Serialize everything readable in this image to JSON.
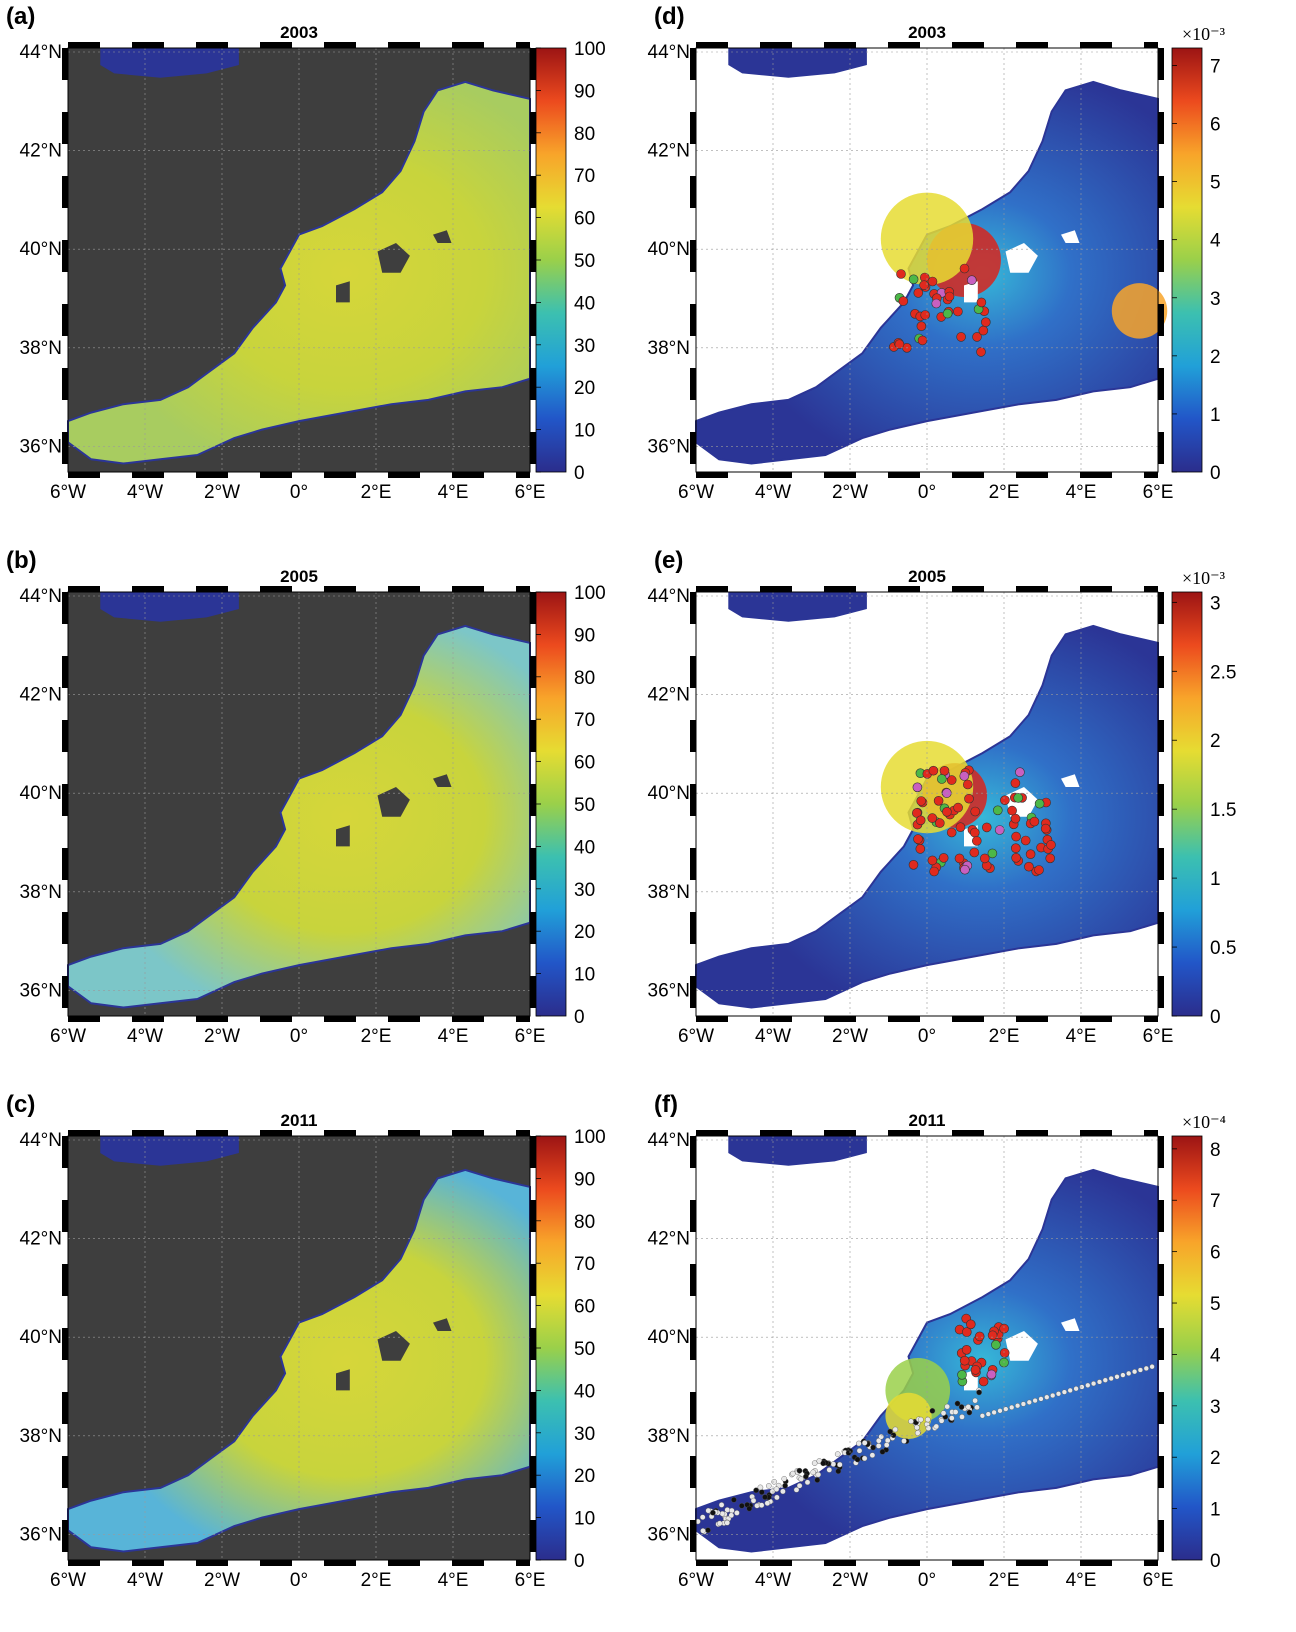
{
  "figure": {
    "panels": [
      {
        "label": "(a)",
        "year": "2003",
        "kind": "percent",
        "colorbar_ticks": [
          "100",
          "90",
          "80",
          "70",
          "60",
          "50",
          "40",
          "30",
          "20",
          "10",
          "0"
        ],
        "colorbar_exponent": ""
      },
      {
        "label": "(b)",
        "year": "2005",
        "kind": "percent",
        "colorbar_ticks": [
          "100",
          "90",
          "80",
          "70",
          "60",
          "50",
          "40",
          "30",
          "20",
          "10",
          "0"
        ],
        "colorbar_exponent": ""
      },
      {
        "label": "(c)",
        "year": "2011",
        "kind": "percent",
        "colorbar_ticks": [
          "100",
          "90",
          "80",
          "70",
          "60",
          "50",
          "40",
          "30",
          "20",
          "10",
          "0"
        ],
        "colorbar_exponent": ""
      },
      {
        "label": "(d)",
        "year": "2003",
        "kind": "density",
        "colorbar_ticks": [
          "7",
          "6",
          "5",
          "4",
          "3",
          "2",
          "1",
          "0"
        ],
        "colorbar_exponent": "×10⁻³"
      },
      {
        "label": "(e)",
        "year": "2005",
        "kind": "density",
        "colorbar_ticks": [
          "3",
          "2.5",
          "2",
          "1.5",
          "1",
          "0.5",
          "0"
        ],
        "colorbar_exponent": "×10⁻³"
      },
      {
        "label": "(f)",
        "year": "2011",
        "kind": "density",
        "colorbar_ticks": [
          "8",
          "7",
          "6",
          "5",
          "4",
          "3",
          "2",
          "1",
          "0"
        ],
        "colorbar_exponent": "×10⁻⁴"
      }
    ],
    "lat_labels": [
      "44°N",
      "42°N",
      "40°N",
      "38°N",
      "36°N"
    ],
    "lon_labels": [
      "6°W",
      "4°W",
      "2°W",
      "0°",
      "2°E",
      "4°E",
      "6°E"
    ],
    "colors": {
      "land": "#3e3e3e",
      "sea_low": "#2b3596",
      "percent_sea": "#c8d43c",
      "percent_cool": "#58b4d8",
      "density_hot": "#d8241c",
      "density_mid": "#36b8d8",
      "station_red": "#e02a1e",
      "station_green": "#4cb848",
      "station_magenta": "#c860c0",
      "track_white": "#e8e8e8",
      "track_black": "#111111"
    }
  }
}
